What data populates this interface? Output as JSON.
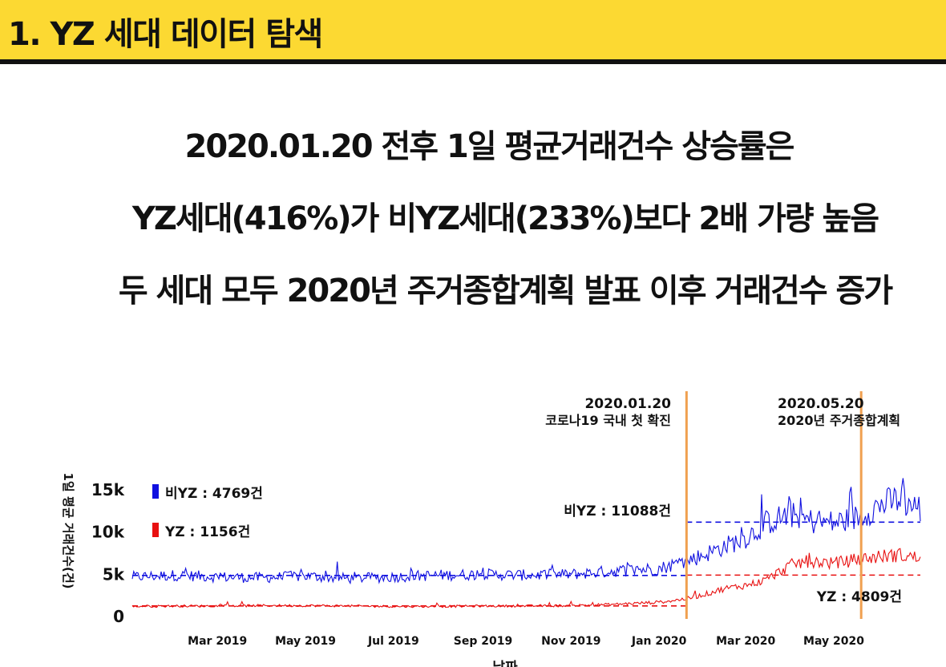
{
  "slide": {
    "section_title": "1. YZ 세대 데이터 탐색",
    "headlines": [
      "2020.01.20 전후 1일 평균거래건수 상승률은",
      "YZ세대(416%)가 비YZ세대(233%)보다 2배 가량 높음",
      "두 세대 모두 2020년 주거종합계획 발표 이후 거래건수 증가"
    ]
  },
  "colors": {
    "accent_yellow": "#fcd932",
    "biyz_series": "#1010e0",
    "yz_series": "#e81010",
    "event_line": "#f0a050"
  },
  "chart_data": {
    "type": "line",
    "xlabel": "날짜",
    "ylabel": "1일 평균 거래건수(건)",
    "x_range": [
      "2019-01-01",
      "2020-06-30"
    ],
    "ylim": [
      0,
      19000
    ],
    "y_ticks": [
      {
        "value": 0,
        "label": "0"
      },
      {
        "value": 5000,
        "label": "5k"
      },
      {
        "value": 10000,
        "label": "10k"
      },
      {
        "value": 15000,
        "label": "15k"
      }
    ],
    "x_ticks": [
      {
        "date": "2019-03-01",
        "label": "Mar 2019"
      },
      {
        "date": "2019-05-01",
        "label": "May 2019"
      },
      {
        "date": "2019-07-01",
        "label": "Jul 2019"
      },
      {
        "date": "2019-09-01",
        "label": "Sep 2019"
      },
      {
        "date": "2019-11-01",
        "label": "Nov 2019"
      },
      {
        "date": "2020-01-01",
        "label": "Jan 2020"
      },
      {
        "date": "2020-03-01",
        "label": "Mar 2020"
      },
      {
        "date": "2020-05-01",
        "label": "May 2020"
      }
    ],
    "legend": {
      "placement": "top-left",
      "entries": [
        {
          "series": "BIYZ",
          "label": "비YZ : 4769건"
        },
        {
          "series": "YZ",
          "label": "YZ : 1156건"
        }
      ]
    },
    "events": [
      {
        "date": "2020-01-20",
        "label_date": "2020.01.20",
        "label_text": "코로나19 국내 첫 확진"
      },
      {
        "date": "2020-05-20",
        "label_date": "2020.05.20",
        "label_text": "2020년 주거종합계획"
      }
    ],
    "reference_lines": [
      {
        "series": "BIYZ",
        "value": 4769,
        "date_range": [
          "2019-01-01",
          "2020-01-20"
        ]
      },
      {
        "series": "BIYZ",
        "value": 11088,
        "date_range": [
          "2020-01-20",
          "2020-06-30"
        ],
        "label": "비YZ : 11088건"
      },
      {
        "series": "YZ",
        "value": 1156,
        "date_range": [
          "2019-01-01",
          "2020-01-20"
        ]
      },
      {
        "series": "YZ",
        "value": 4809,
        "date_range": [
          "2020-01-20",
          "2020-06-30"
        ],
        "label": "YZ : 4809건"
      }
    ],
    "series": [
      {
        "name": "BIYZ",
        "points": [
          [
            "2019-01-01",
            4600
          ],
          [
            "2019-02-01",
            4800
          ],
          [
            "2019-03-01",
            4600
          ],
          [
            "2019-04-01",
            4500
          ],
          [
            "2019-05-01",
            4700
          ],
          [
            "2019-06-01",
            4400
          ],
          [
            "2019-07-01",
            4600
          ],
          [
            "2019-08-01",
            4800
          ],
          [
            "2019-09-01",
            4900
          ],
          [
            "2019-10-01",
            4800
          ],
          [
            "2019-11-01",
            4900
          ],
          [
            "2019-12-01",
            5300
          ],
          [
            "2020-01-01",
            5600
          ],
          [
            "2020-01-20",
            6500
          ],
          [
            "2020-02-01",
            7200
          ],
          [
            "2020-02-15",
            8200
          ],
          [
            "2020-03-01",
            9200
          ],
          [
            "2020-03-15",
            11000
          ],
          [
            "2020-04-01",
            12000
          ],
          [
            "2020-04-15",
            11200
          ],
          [
            "2020-05-01",
            11000
          ],
          [
            "2020-05-15",
            11500
          ],
          [
            "2020-06-01",
            13000
          ],
          [
            "2020-06-15",
            13800
          ],
          [
            "2020-06-30",
            12700
          ]
        ]
      },
      {
        "name": "YZ",
        "points": [
          [
            "2019-01-01",
            1100
          ],
          [
            "2019-02-01",
            1150
          ],
          [
            "2019-03-01",
            1150
          ],
          [
            "2019-04-01",
            1200
          ],
          [
            "2019-05-01",
            1200
          ],
          [
            "2019-06-01",
            1150
          ],
          [
            "2019-07-01",
            1100
          ],
          [
            "2019-08-01",
            1100
          ],
          [
            "2019-09-01",
            1150
          ],
          [
            "2019-10-01",
            1150
          ],
          [
            "2019-11-01",
            1200
          ],
          [
            "2019-12-01",
            1350
          ],
          [
            "2020-01-01",
            1600
          ],
          [
            "2020-01-20",
            2000
          ],
          [
            "2020-02-01",
            2500
          ],
          [
            "2020-02-15",
            3200
          ],
          [
            "2020-03-01",
            3600
          ],
          [
            "2020-03-15",
            4200
          ],
          [
            "2020-04-01",
            6000
          ],
          [
            "2020-04-15",
            6500
          ],
          [
            "2020-05-01",
            6200
          ],
          [
            "2020-05-15",
            6600
          ],
          [
            "2020-06-01",
            7000
          ],
          [
            "2020-06-15",
            7200
          ],
          [
            "2020-06-30",
            6800
          ]
        ]
      }
    ]
  }
}
